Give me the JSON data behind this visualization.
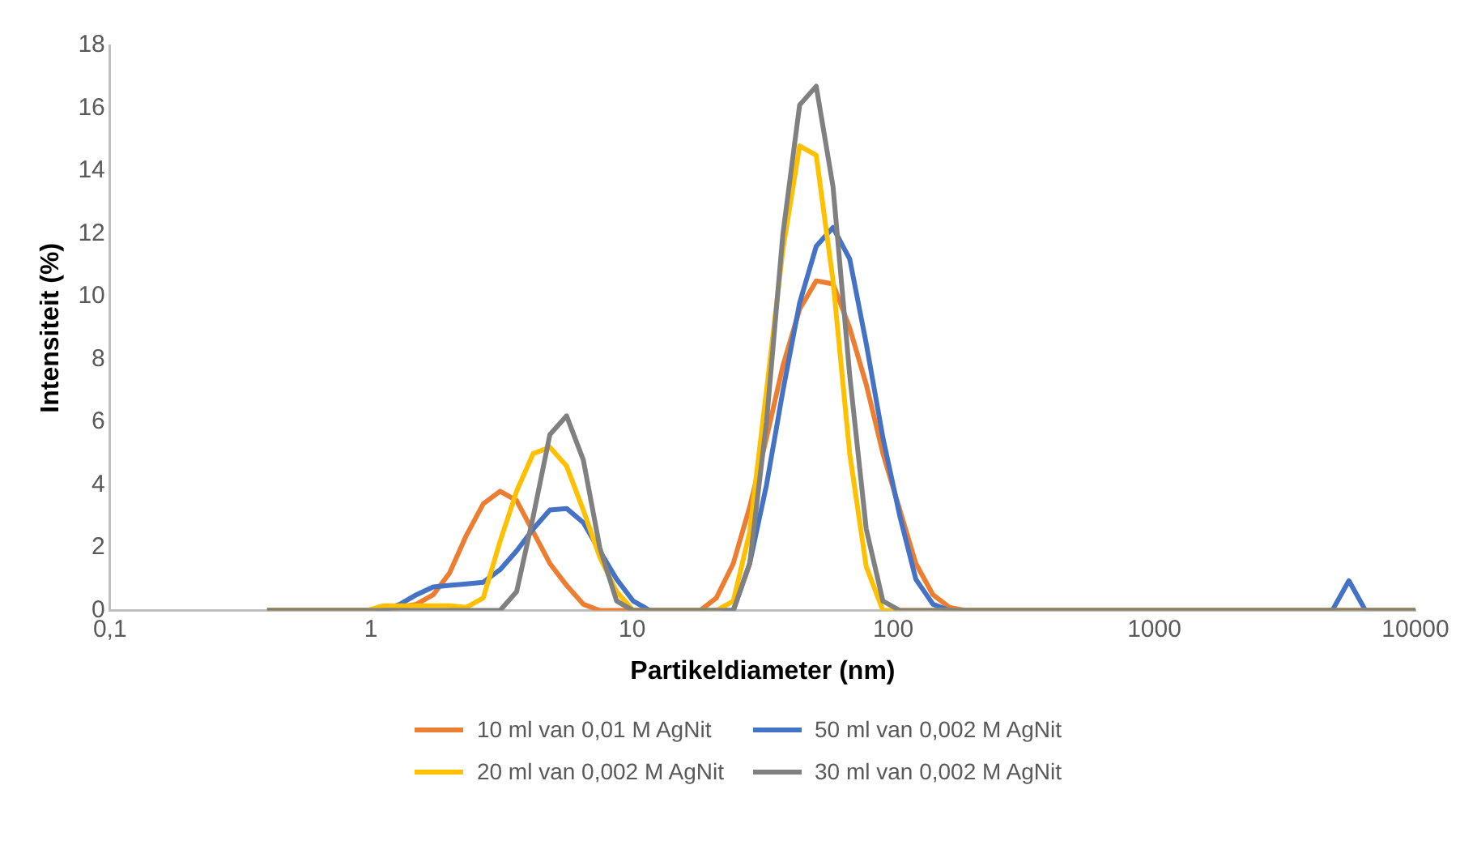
{
  "chart_data": {
    "type": "line",
    "xlabel": "Partikeldiameter (nm)",
    "ylabel": "Intensiteit (%)",
    "log": "x",
    "xlim": [
      0.1,
      10000
    ],
    "xticks": [
      {
        "value": 0.1,
        "label": "0,1"
      },
      1,
      10,
      100,
      1000,
      10000
    ],
    "ylim": [
      0,
      18
    ],
    "yticks": [
      0,
      2,
      4,
      6,
      8,
      10,
      12,
      14,
      16,
      18
    ],
    "grid": false,
    "legend": "bottom",
    "marker": "none",
    "line_style": "solid",
    "series": [
      {
        "name": "10 ml van 0,01 M AgNit",
        "color": "#ed7d31",
        "x": [
          0.4,
          1.11,
          1.29,
          1.49,
          1.73,
          2.0,
          2.32,
          2.69,
          3.12,
          3.61,
          4.18,
          4.84,
          5.61,
          6.5,
          7.52,
          18.2,
          21.0,
          24.4,
          28.2,
          32.7,
          37.8,
          43.8,
          50.7,
          58.8,
          68.1,
          78.8,
          91.3,
          106,
          122,
          142,
          164,
          190,
          10000
        ],
        "values": [
          0,
          0,
          0.1,
          0.2,
          0.5,
          1.2,
          2.4,
          3.4,
          3.8,
          3.5,
          2.5,
          1.5,
          0.8,
          0.2,
          0,
          0,
          0.4,
          1.5,
          3.3,
          5.5,
          7.8,
          9.6,
          10.5,
          10.4,
          9.0,
          7.2,
          5.0,
          3.2,
          1.5,
          0.5,
          0.1,
          0,
          0
        ]
      },
      {
        "name": "50 ml van 0,002 M AgNit",
        "color": "#4472c4",
        "x": [
          0.4,
          1.11,
          1.29,
          1.49,
          1.73,
          2.0,
          2.32,
          2.69,
          3.12,
          3.61,
          4.18,
          4.84,
          5.61,
          6.5,
          7.52,
          8.72,
          10.1,
          11.7,
          24.4,
          28.2,
          32.7,
          37.8,
          43.8,
          50.7,
          58.8,
          68.1,
          78.8,
          91.3,
          106,
          122,
          142,
          164,
          4800,
          5560,
          6440,
          10000
        ],
        "values": [
          0,
          0,
          0.2,
          0.5,
          0.75,
          0.8,
          0.85,
          0.9,
          1.3,
          1.9,
          2.6,
          3.2,
          3.25,
          2.8,
          1.9,
          1.0,
          0.3,
          0,
          0,
          1.5,
          4.0,
          7.0,
          9.8,
          11.6,
          12.2,
          11.2,
          8.5,
          5.5,
          3.0,
          1.0,
          0.2,
          0,
          0,
          0.95,
          0,
          0
        ]
      },
      {
        "name": "20 ml van 0,002 M AgNit",
        "color": "#ffc000",
        "x": [
          0.4,
          0.963,
          1.11,
          1.49,
          2.0,
          2.32,
          2.69,
          3.12,
          3.61,
          4.18,
          4.84,
          5.61,
          6.5,
          7.52,
          8.72,
          10.1,
          21.0,
          24.4,
          28.2,
          32.7,
          37.8,
          43.8,
          50.7,
          58.8,
          68.1,
          78.8,
          91.3,
          10000
        ],
        "values": [
          0,
          0,
          0.15,
          0.15,
          0.15,
          0.1,
          0.4,
          2.2,
          3.8,
          5.0,
          5.2,
          4.6,
          3.2,
          1.7,
          0.6,
          0,
          0,
          0.3,
          2.5,
          7.0,
          11.5,
          14.8,
          14.5,
          10.5,
          5.0,
          1.4,
          0,
          0
        ]
      },
      {
        "name": "30 ml van 0,002 M AgNit",
        "color": "#808080",
        "x": [
          0.4,
          3.12,
          3.61,
          4.18,
          4.84,
          5.61,
          6.5,
          7.52,
          8.72,
          10.1,
          24.4,
          28.2,
          32.7,
          37.8,
          43.8,
          50.7,
          58.8,
          68.1,
          78.8,
          91.3,
          106,
          10000
        ],
        "values": [
          0,
          0,
          0.6,
          3.0,
          5.6,
          6.2,
          4.8,
          2.0,
          0.3,
          0,
          0,
          1.5,
          6.0,
          12.0,
          16.1,
          16.7,
          13.5,
          7.5,
          2.6,
          0.3,
          0,
          0
        ]
      }
    ]
  }
}
